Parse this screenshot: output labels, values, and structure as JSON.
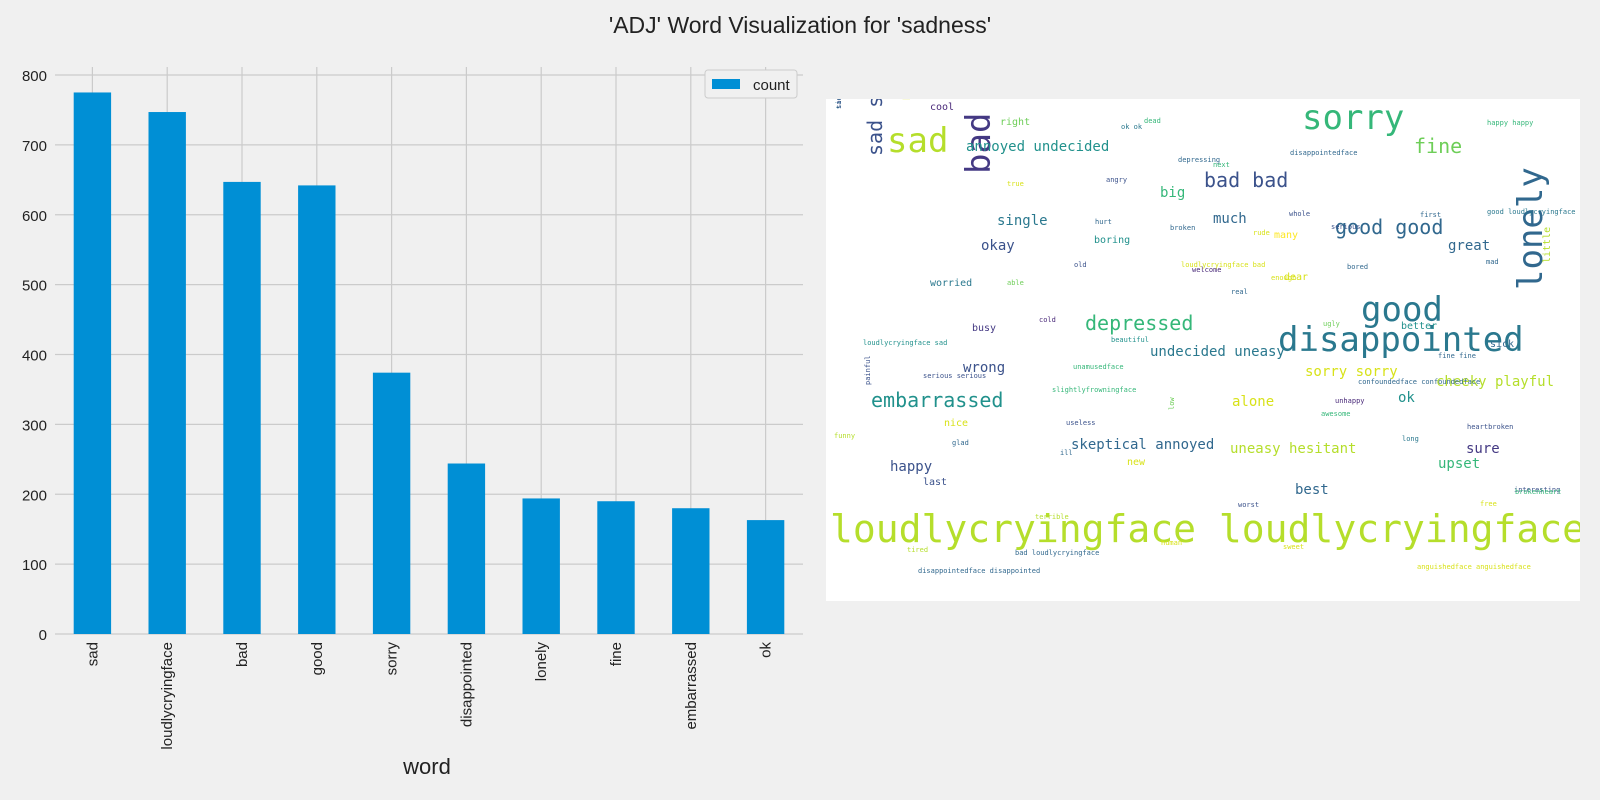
{
  "title": "'ADJ' Word Visualization for 'sadness'",
  "chart_data": {
    "type": "bar",
    "categories": [
      "sad",
      "loudlycryingface",
      "bad",
      "good",
      "sorry",
      "disappointed",
      "lonely",
      "fine",
      "embarrassed",
      "ok"
    ],
    "series": [
      {
        "name": "count",
        "values": [
          775,
          747,
          647,
          642,
          374,
          244,
          194,
          190,
          180,
          163
        ],
        "color": "#008fd5"
      }
    ],
    "xlabel": "word",
    "ylabel": "",
    "ylim": [
      0,
      800
    ],
    "yticks": [
      0,
      100,
      200,
      300,
      400,
      500,
      600,
      700,
      800
    ],
    "grid": true,
    "legend": "top-right"
  },
  "wordcloud": {
    "words": [
      {
        "text": "loudlycryingface loudlycryingface",
        "size": "xl",
        "color": "#b5de2b"
      },
      {
        "text": "sad",
        "size": "l",
        "color": "#b5de2b"
      },
      {
        "text": "sorry",
        "size": "l",
        "color": "#35b779"
      },
      {
        "text": "good",
        "size": "l",
        "color": "#2a788e"
      },
      {
        "text": "disappointed",
        "size": "l",
        "color": "#2a788e"
      },
      {
        "text": "bad",
        "size": "l",
        "color": "#443983",
        "vertical": true
      },
      {
        "text": "lonely",
        "size": "l",
        "color": "#31688e",
        "vertical": true
      },
      {
        "text": "embarrassed",
        "size": "m",
        "color": "#21918c"
      },
      {
        "text": "sad sad",
        "size": "m",
        "color": "#3b528b",
        "vertical": true
      },
      {
        "text": "bad bad",
        "size": "m",
        "color": "#3b528b"
      },
      {
        "text": "good good",
        "size": "m",
        "color": "#31688e"
      },
      {
        "text": "fine",
        "size": "m",
        "color": "#6ece58"
      },
      {
        "text": "depressed",
        "size": "m",
        "color": "#35b779"
      },
      {
        "text": "annoyed undecided",
        "size": "s",
        "color": "#21918c"
      },
      {
        "text": "big",
        "size": "s",
        "color": "#35b779"
      },
      {
        "text": "much",
        "size": "s",
        "color": "#31688e"
      },
      {
        "text": "okay",
        "size": "s",
        "color": "#3b528b"
      },
      {
        "text": "single",
        "size": "s",
        "color": "#2a788e"
      },
      {
        "text": "great",
        "size": "s",
        "color": "#31688e"
      },
      {
        "text": "wrong",
        "size": "s",
        "color": "#3b528b"
      },
      {
        "text": "undecided uneasy",
        "size": "s",
        "color": "#2a788e"
      },
      {
        "text": "alone",
        "size": "s",
        "color": "#d8e219"
      },
      {
        "text": "ok",
        "size": "s",
        "color": "#21918c"
      },
      {
        "text": "sorry sorry",
        "size": "s",
        "color": "#d8e219"
      },
      {
        "text": "cheeky playful",
        "size": "s",
        "color": "#b5de2b"
      },
      {
        "text": "skeptical annoyed",
        "size": "s",
        "color": "#31688e"
      },
      {
        "text": "uneasy hesitant",
        "size": "s",
        "color": "#b5de2b"
      },
      {
        "text": "upset",
        "size": "s",
        "color": "#35b779"
      },
      {
        "text": "happy",
        "size": "s",
        "color": "#3b528b"
      },
      {
        "text": "best",
        "size": "s",
        "color": "#31688e"
      },
      {
        "text": "sure",
        "size": "s",
        "color": "#443983"
      },
      {
        "text": "worried",
        "size": "xs",
        "color": "#2a788e"
      },
      {
        "text": "cool",
        "size": "xs",
        "color": "#482878"
      },
      {
        "text": "right",
        "size": "xs",
        "color": "#6ece58"
      },
      {
        "text": "boring",
        "size": "xs",
        "color": "#21918c"
      },
      {
        "text": "busy",
        "size": "xs",
        "color": "#443983"
      },
      {
        "text": "better",
        "size": "xs",
        "color": "#21918c"
      },
      {
        "text": "many",
        "size": "xs",
        "color": "#fde725"
      },
      {
        "text": "dear",
        "size": "xs",
        "color": "#d8e219"
      },
      {
        "text": "nice",
        "size": "xs",
        "color": "#d8e219"
      },
      {
        "text": "sick",
        "size": "xs",
        "color": "#31688e"
      },
      {
        "text": "new",
        "size": "xs",
        "color": "#d8e219"
      },
      {
        "text": "last",
        "size": "xs",
        "color": "#3b528b"
      },
      {
        "text": "little",
        "size": "xs",
        "color": "#b5de2b",
        "vertical": true
      },
      {
        "text": "poor",
        "size": "xs",
        "color": "#d8e219",
        "vertical": true
      },
      {
        "text": "loudlycryingface sad",
        "size": "xxs",
        "color": "#21918c"
      },
      {
        "text": "ok ok",
        "size": "xxs",
        "color": "#2a788e"
      },
      {
        "text": "happy happy",
        "size": "xxs",
        "color": "#35b779"
      },
      {
        "text": "true",
        "size": "xxs",
        "color": "#d8e219"
      },
      {
        "text": "broken",
        "size": "xxs",
        "color": "#31688e"
      },
      {
        "text": "welcome",
        "size": "xxs",
        "color": "#482878"
      },
      {
        "text": "fine fine",
        "size": "xxs",
        "color": "#31688e"
      },
      {
        "text": "rude",
        "size": "xxs",
        "color": "#d8e219"
      },
      {
        "text": "real",
        "size": "xxs",
        "color": "#31688e"
      },
      {
        "text": "ugly",
        "size": "xxs",
        "color": "#6ece58"
      },
      {
        "text": "dead",
        "size": "xxs",
        "color": "#35b779"
      },
      {
        "text": "angry",
        "size": "xxs",
        "color": "#3b528b"
      },
      {
        "text": "disappointedface",
        "size": "xxs",
        "color": "#31688e"
      },
      {
        "text": "bored",
        "size": "xxs",
        "color": "#31688e"
      },
      {
        "text": "enough",
        "size": "xxs",
        "color": "#d8e219"
      },
      {
        "text": "long",
        "size": "xxs",
        "color": "#2a788e"
      },
      {
        "text": "unhappy",
        "size": "xxs",
        "color": "#482878"
      },
      {
        "text": "glad",
        "size": "xxs",
        "color": "#31688e"
      },
      {
        "text": "funny",
        "size": "xxs",
        "color": "#b5de2b"
      },
      {
        "text": "next",
        "size": "xxs",
        "color": "#35b779"
      },
      {
        "text": "sweet",
        "size": "xxs",
        "color": "#d8e219"
      },
      {
        "text": "human",
        "size": "xxs",
        "color": "#d8e219"
      },
      {
        "text": "cold",
        "size": "xxs",
        "color": "#482878"
      },
      {
        "text": "hurt",
        "size": "xxs",
        "color": "#31688e"
      },
      {
        "text": "serious",
        "size": "xxs",
        "color": "#3b528b"
      },
      {
        "text": "beautiful",
        "size": "xxs",
        "color": "#21918c"
      },
      {
        "text": "depressing",
        "size": "xxs",
        "color": "#31688e"
      },
      {
        "text": "first",
        "size": "xxs",
        "color": "#31688e"
      },
      {
        "text": "whole",
        "size": "xxs",
        "color": "#3b528b"
      },
      {
        "text": "good loudlycryingface",
        "size": "xxs",
        "color": "#2a788e"
      },
      {
        "text": "tired",
        "size": "xxs",
        "color": "#b5de2b"
      },
      {
        "text": "ill",
        "size": "xxs",
        "color": "#31688e"
      },
      {
        "text": "worst",
        "size": "xxs",
        "color": "#3b528b"
      },
      {
        "text": "able",
        "size": "xxs",
        "color": "#6ece58"
      },
      {
        "text": "old",
        "size": "xxs",
        "color": "#3b528b"
      },
      {
        "text": "mad",
        "size": "xxs",
        "color": "#31688e"
      },
      {
        "text": "free",
        "size": "xxs",
        "color": "#d8e219"
      },
      {
        "text": "awesome",
        "size": "xxs",
        "color": "#35b779"
      },
      {
        "text": "useless",
        "size": "xxs",
        "color": "#3b528b"
      },
      {
        "text": "interesting",
        "size": "xxs",
        "color": "#3b528b"
      },
      {
        "text": "heartbroken",
        "size": "xxs",
        "color": "#3b528b"
      },
      {
        "text": "brokenheart",
        "size": "xxs",
        "color": "#35b779"
      },
      {
        "text": "serious serious",
        "size": "xxs",
        "color": "#3b528b"
      },
      {
        "text": "unamusedface",
        "size": "xxs",
        "color": "#35b779"
      },
      {
        "text": "slightlyfrowningface",
        "size": "xxs",
        "color": "#35b779"
      },
      {
        "text": "confoundedface confoundedface",
        "size": "xxs",
        "color": "#31688e"
      },
      {
        "text": "bad loudlycryingface",
        "size": "xxs",
        "color": "#31688e"
      },
      {
        "text": "disappointedface disappointed",
        "size": "xxs",
        "color": "#31688e"
      },
      {
        "text": "loudlycryingface bad",
        "size": "xxs",
        "color": "#d8e219"
      },
      {
        "text": "anguishedface anguishedface",
        "size": "xxs",
        "color": "#d8e219"
      },
      {
        "text": "terrible",
        "size": "xxs",
        "color": "#b5de2b"
      },
      {
        "text": "low",
        "size": "xxs",
        "color": "#6ece58",
        "vertical": true
      },
      {
        "text": "painful",
        "size": "xxs",
        "color": "#3b528b",
        "vertical": true
      },
      {
        "text": "tiredface",
        "size": "xxs",
        "color": "#2a788e",
        "vertical": true
      },
      {
        "text": "sad loudlycryingface",
        "size": "xxs",
        "color": "#3b528b",
        "vertical": true
      }
    ]
  }
}
